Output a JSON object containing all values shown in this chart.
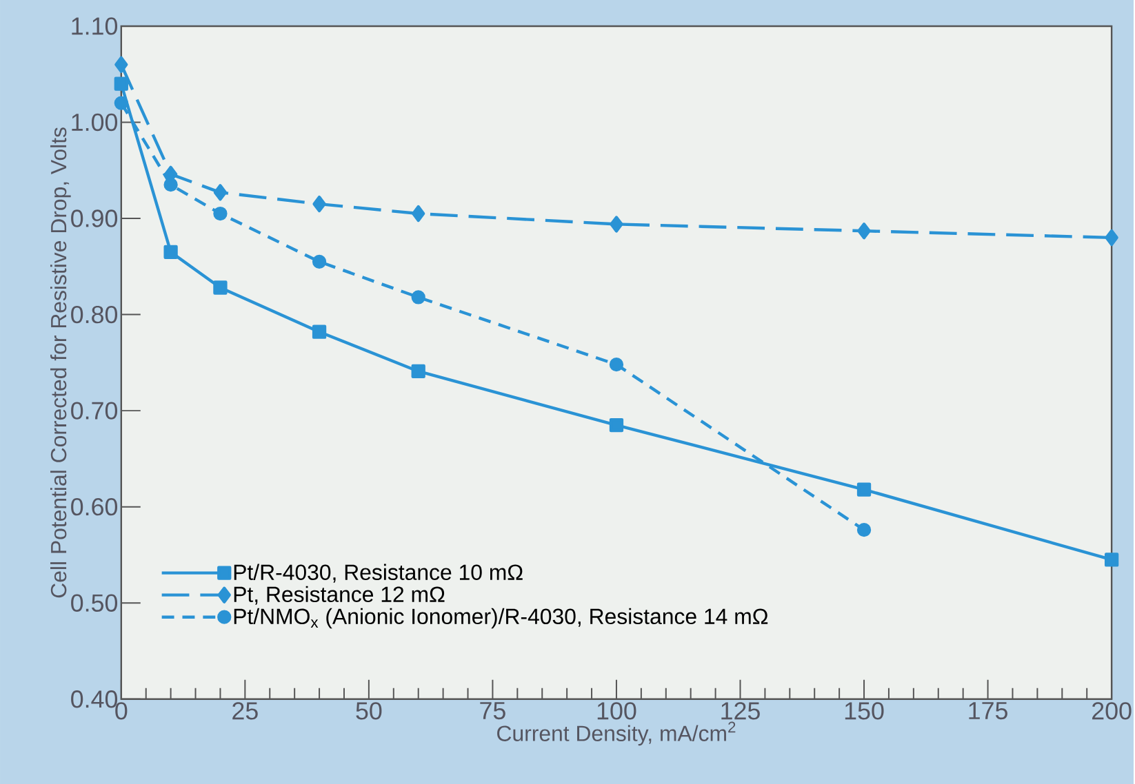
{
  "chart_data": {
    "type": "line",
    "xlabel": "Current Density, mA/cm$^{2}$",
    "ylabel": "Cell Potential Corrected for Resistive Drop, Volts",
    "x": [
      0,
      10,
      20,
      40,
      60,
      100,
      150,
      200
    ],
    "xlim": [
      0,
      200
    ],
    "xticks": [
      0,
      25,
      50,
      75,
      100,
      125,
      150,
      175,
      200
    ],
    "ylim": [
      0.4,
      1.1
    ],
    "yticks": [
      {
        "value": 0.4,
        "label": "0.40"
      },
      {
        "value": 0.5,
        "label": "0.50"
      },
      {
        "value": 0.6,
        "label": "0.60"
      },
      {
        "value": 0.7,
        "label": "0.70"
      },
      {
        "value": 0.8,
        "label": "0.80"
      },
      {
        "value": 0.9,
        "label": "0.90"
      },
      {
        "value": 1.0,
        "label": "1.00"
      },
      {
        "value": 1.1,
        "label": "1.10"
      }
    ],
    "grid": false,
    "legend": "bottom left",
    "series": [
      {
        "name": "Pt/R-4030, Resistance 10 mΩ",
        "color": "#2a93d5",
        "marker": "square",
        "line_style": "solid",
        "values": [
          1.04,
          0.865,
          0.828,
          0.782,
          0.741,
          0.685,
          0.618,
          0.545
        ]
      },
      {
        "name": "Pt, Resistance 12 mΩ",
        "color": "#2a93d5",
        "marker": "diamond",
        "line_style": "long dashed",
        "values": [
          1.06,
          0.946,
          0.927,
          0.915,
          0.905,
          0.894,
          0.887,
          0.88
        ]
      },
      {
        "name": "Pt/NMO$_{x}$ (Anionic Ionomer)/R-4030, Resistance 14 mΩ",
        "color": "#2a93d5",
        "marker": "circle",
        "line_style": "dashed",
        "values": [
          1.02,
          0.935,
          0.905,
          0.855,
          0.818,
          0.748,
          0.576,
          null
        ]
      }
    ]
  }
}
